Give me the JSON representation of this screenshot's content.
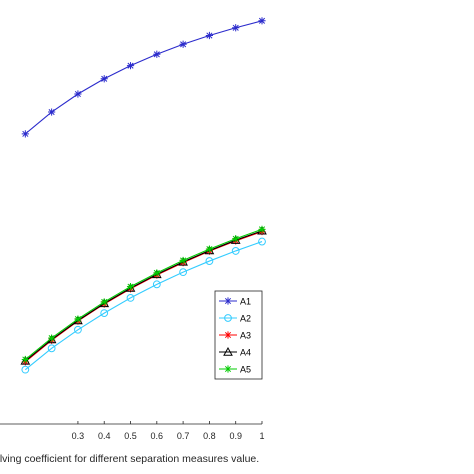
{
  "chart_data": {
    "type": "line",
    "title": "",
    "xlabel": "he resolving coefficient for different separation measures value.",
    "ylabel": "",
    "xlim": [
      -0.08,
      1.0
    ],
    "ylim": [
      0.4,
      0.985
    ],
    "grid": false,
    "legend_position": "bottom-right",
    "x_ticks": [
      "0.3",
      "0.4",
      "0.5",
      "0.6",
      "0.7",
      "0.8",
      "0.9",
      "1"
    ],
    "x": [
      0.1,
      0.2,
      0.3,
      0.4,
      0.5,
      0.6,
      0.7,
      0.8,
      0.9,
      1.0
    ],
    "series": [
      {
        "name": "A1",
        "color": "#2b2bcc",
        "marker": "asterisk",
        "values": [
          0.8003,
          0.8304,
          0.8553,
          0.8763,
          0.8944,
          0.9101,
          0.9239,
          0.936,
          0.9467,
          0.9563
        ]
      },
      {
        "name": "A2",
        "color": "#33ccff",
        "marker": "circle",
        "values": [
          0.475,
          0.5044,
          0.53,
          0.553,
          0.574,
          0.5927,
          0.6095,
          0.6248,
          0.6388,
          0.6517
        ]
      },
      {
        "name": "A3",
        "color": "#ff0000",
        "marker": "asterisk",
        "values": [
          0.4858,
          0.5155,
          0.542,
          0.5656,
          0.5866,
          0.6055,
          0.6227,
          0.6385,
          0.6527,
          0.6655
        ]
      },
      {
        "name": "A4",
        "color": "#000000",
        "marker": "triangle",
        "values": [
          0.487,
          0.5165,
          0.5428,
          0.5664,
          0.5875,
          0.6064,
          0.6236,
          0.6393,
          0.6536,
          0.6665
        ]
      },
      {
        "name": "A5",
        "color": "#00cc00",
        "marker": "asterisk",
        "values": [
          0.489,
          0.5185,
          0.5448,
          0.5684,
          0.5895,
          0.6084,
          0.6257,
          0.6413,
          0.6556,
          0.6686
        ]
      }
    ]
  }
}
